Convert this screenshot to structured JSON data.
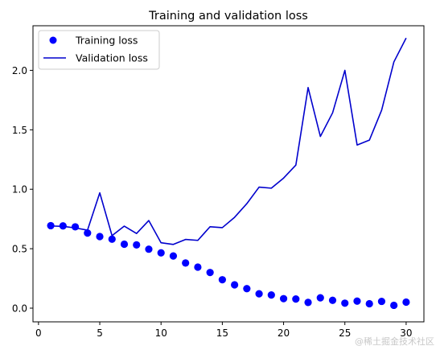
{
  "chart_data": {
    "type": "line",
    "title": "Training and validation loss",
    "xlabel": "",
    "ylabel": "",
    "xlim": [
      -0.45,
      31.45
    ],
    "ylim": [
      -0.115,
      2.375
    ],
    "xticks": [
      0,
      5,
      10,
      15,
      20,
      25,
      30
    ],
    "yticks": [
      0.0,
      0.5,
      1.0,
      1.5,
      2.0
    ],
    "xtick_labels": [
      "0",
      "5",
      "10",
      "15",
      "20",
      "25",
      "30"
    ],
    "ytick_labels": [
      "0.0",
      "0.5",
      "1.0",
      "1.5",
      "2.0"
    ],
    "grid": false,
    "legend_position": "top-left",
    "x": [
      1,
      2,
      3,
      4,
      5,
      6,
      7,
      8,
      9,
      10,
      11,
      12,
      13,
      14,
      15,
      16,
      17,
      18,
      19,
      20,
      21,
      22,
      23,
      24,
      25,
      26,
      27,
      28,
      29,
      30
    ],
    "series": [
      {
        "name": "Training loss",
        "style": "markers",
        "color": "#0000ff",
        "values": [
          0.694,
          0.692,
          0.684,
          0.632,
          0.602,
          0.58,
          0.538,
          0.532,
          0.496,
          0.465,
          0.439,
          0.38,
          0.345,
          0.3,
          0.239,
          0.196,
          0.164,
          0.121,
          0.111,
          0.08,
          0.077,
          0.048,
          0.087,
          0.066,
          0.042,
          0.059,
          0.037,
          0.057,
          0.024,
          0.051
        ]
      },
      {
        "name": "Validation loss",
        "style": "line",
        "color": "#0000cd",
        "values": [
          0.691,
          0.688,
          0.675,
          0.656,
          0.97,
          0.61,
          0.69,
          0.628,
          0.737,
          0.55,
          0.536,
          0.578,
          0.57,
          0.685,
          0.677,
          0.764,
          0.879,
          1.018,
          1.009,
          1.094,
          1.203,
          1.855,
          1.444,
          1.643,
          2.0,
          1.372,
          1.413,
          1.665,
          2.071,
          2.272
        ]
      }
    ]
  },
  "watermark": "@稀土掘金技术社区"
}
